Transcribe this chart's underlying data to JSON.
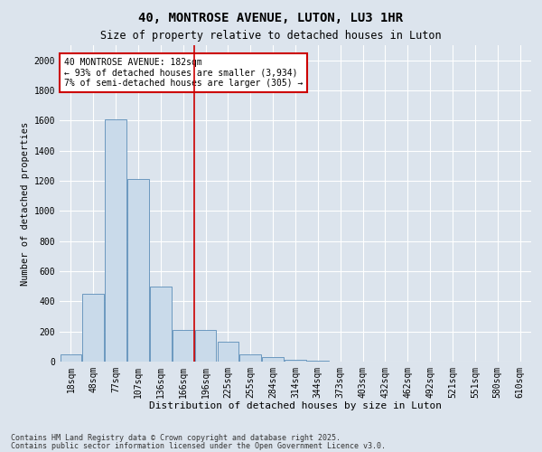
{
  "title1": "40, MONTROSE AVENUE, LUTON, LU3 1HR",
  "title2": "Size of property relative to detached houses in Luton",
  "xlabel": "Distribution of detached houses by size in Luton",
  "ylabel": "Number of detached properties",
  "categories": [
    "18sqm",
    "48sqm",
    "77sqm",
    "107sqm",
    "136sqm",
    "166sqm",
    "196sqm",
    "225sqm",
    "255sqm",
    "284sqm",
    "314sqm",
    "344sqm",
    "373sqm",
    "403sqm",
    "432sqm",
    "462sqm",
    "492sqm",
    "521sqm",
    "551sqm",
    "580sqm",
    "610sqm"
  ],
  "values": [
    50,
    450,
    1610,
    1210,
    500,
    210,
    210,
    130,
    50,
    30,
    10,
    5,
    2,
    1,
    0,
    0,
    0,
    0,
    0,
    0,
    0
  ],
  "property_line_x": 5.5,
  "annotation_text": "40 MONTROSE AVENUE: 182sqm\n← 93% of detached houses are smaller (3,934)\n7% of semi-detached houses are larger (305) →",
  "bar_color": "#c9daea",
  "bar_edge_color": "#5b8db8",
  "line_color": "#cc0000",
  "box_edge_color": "#cc0000",
  "background_color": "#dce4ed",
  "plot_bg_color": "#dce4ed",
  "grid_color": "#ffffff",
  "ylim": [
    0,
    2100
  ],
  "yticks": [
    0,
    200,
    400,
    600,
    800,
    1000,
    1200,
    1400,
    1600,
    1800,
    2000
  ],
  "footer1": "Contains HM Land Registry data © Crown copyright and database right 2025.",
  "footer2": "Contains public sector information licensed under the Open Government Licence v3.0.",
  "title1_fontsize": 10,
  "title2_fontsize": 8.5,
  "xlabel_fontsize": 8,
  "ylabel_fontsize": 7.5,
  "tick_fontsize": 7,
  "annotation_fontsize": 7,
  "footer_fontsize": 6
}
